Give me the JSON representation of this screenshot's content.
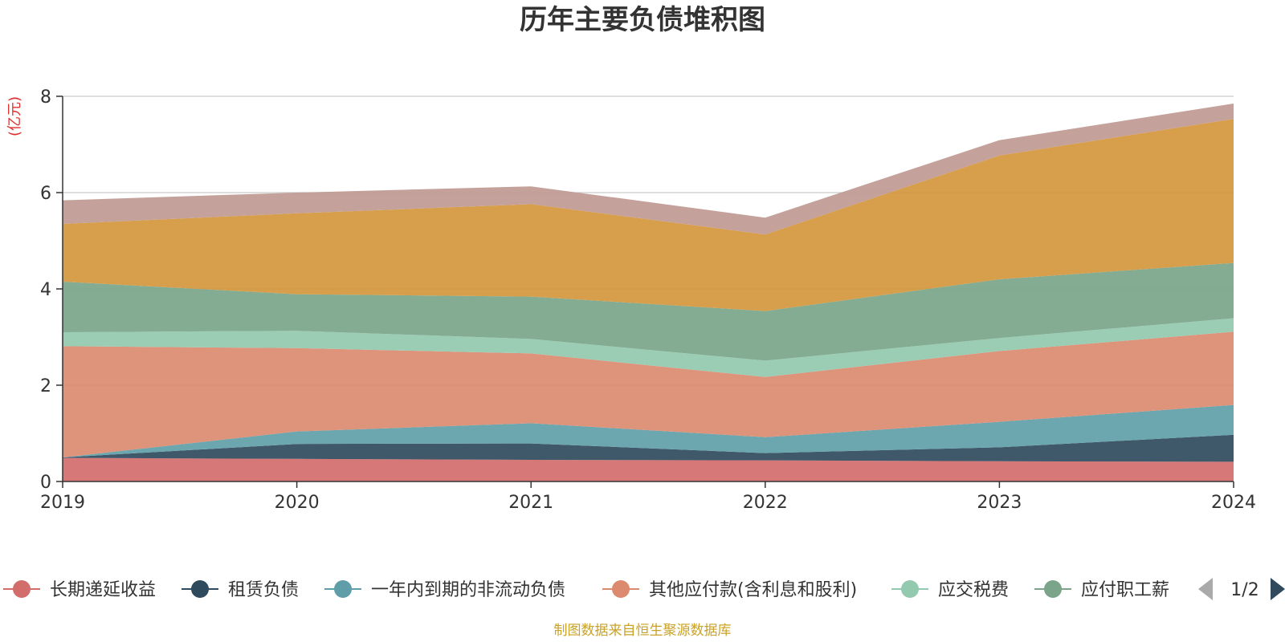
{
  "chart_data": {
    "type": "area",
    "stacked": true,
    "title": "历年主要负债堆积图",
    "ylabel": "(亿元)",
    "ylim": [
      0,
      8
    ],
    "yticks": [
      0,
      2,
      4,
      6,
      8
    ],
    "grid": true,
    "x": [
      "2019",
      "2020",
      "2021",
      "2022",
      "2023",
      "2024"
    ],
    "series": [
      {
        "name": "长期递延收益",
        "color": "#d26d6b",
        "values": [
          0.49,
          0.47,
          0.45,
          0.44,
          0.42,
          0.41
        ]
      },
      {
        "name": "租赁负债",
        "color": "#2f4a5d",
        "values": [
          0.01,
          0.31,
          0.34,
          0.15,
          0.29,
          0.56
        ]
      },
      {
        "name": "一年内到期的非流动负债",
        "color": "#5f9ea8",
        "values": [
          0.0,
          0.26,
          0.42,
          0.33,
          0.53,
          0.62
        ]
      },
      {
        "name": "其他应付款(含利息和股利)",
        "color": "#db8a70",
        "values": [
          2.31,
          1.73,
          1.45,
          1.25,
          1.47,
          1.52
        ]
      },
      {
        "name": "应交税费",
        "color": "#93c9ae",
        "values": [
          0.29,
          0.36,
          0.3,
          0.34,
          0.27,
          0.28
        ]
      },
      {
        "name": "应付职工薪酬",
        "color": "#7aa58a",
        "values": [
          1.05,
          0.76,
          0.88,
          1.03,
          1.22,
          1.15
        ]
      },
      {
        "name": "",
        "color": "#d4963c",
        "values": [
          1.2,
          1.68,
          1.92,
          1.59,
          2.57,
          2.99
        ]
      },
      {
        "name": "",
        "color": "#bf9a93",
        "values": [
          0.49,
          0.43,
          0.37,
          0.35,
          0.32,
          0.32
        ]
      }
    ],
    "legend": {
      "placement": "bottom",
      "visible_items": [
        "长期递延收益",
        "租赁负债",
        "一年内到期的非流动负债",
        "其他应付款(含利息和股利)",
        "应交税费",
        "应付职工薪"
      ],
      "page_indicator": "1/2"
    }
  },
  "source": "制图数据来自恒生聚源数据库"
}
